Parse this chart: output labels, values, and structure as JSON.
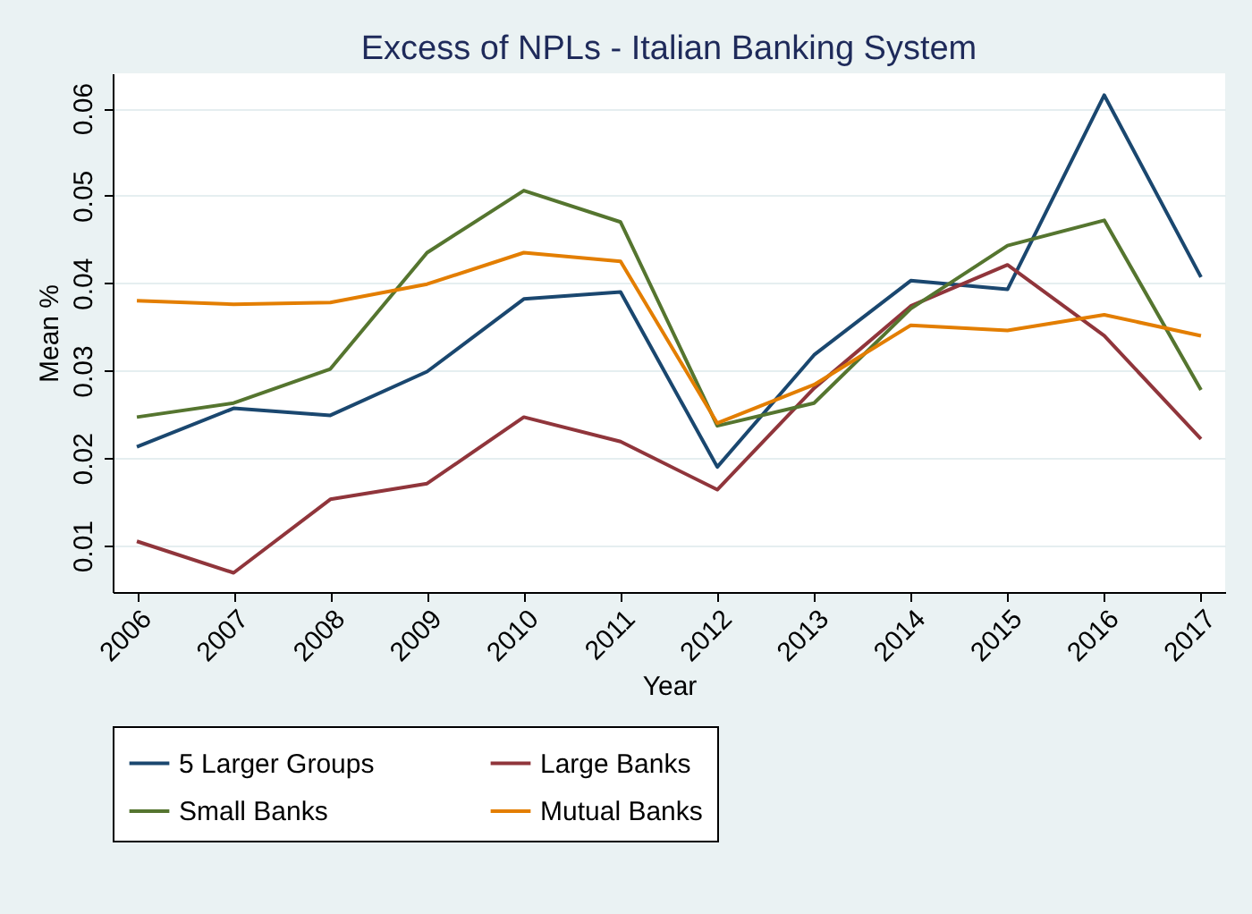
{
  "chart_data": {
    "type": "line",
    "title": "Excess of NPLs - Italian Banking System",
    "xlabel": "Year",
    "ylabel": "Mean %",
    "categories": [
      "2006",
      "2007",
      "2008",
      "2009",
      "2010",
      "2011",
      "2012",
      "2013",
      "2014",
      "2015",
      "2016",
      "2017"
    ],
    "series": [
      {
        "name": "5 Larger Groups",
        "color": "#1a476f",
        "values": [
          0.0213,
          0.0257,
          0.0249,
          0.0299,
          0.0382,
          0.039,
          0.019,
          0.0318,
          0.0403,
          0.0393,
          0.0615,
          0.0407
        ]
      },
      {
        "name": "Large Banks",
        "color": "#90353b",
        "values": [
          0.0105,
          0.0069,
          0.0153,
          0.0171,
          0.0247,
          0.0219,
          0.0164,
          0.028,
          0.0374,
          0.0421,
          0.034,
          0.0222
        ]
      },
      {
        "name": "Small Banks",
        "color": "#55752f",
        "values": [
          0.0247,
          0.0263,
          0.0302,
          0.0435,
          0.0506,
          0.047,
          0.0237,
          0.0263,
          0.0371,
          0.0443,
          0.0472,
          0.0278
        ]
      },
      {
        "name": "Mutual Banks",
        "color": "#e37e00",
        "values": [
          0.038,
          0.0376,
          0.0378,
          0.0399,
          0.0435,
          0.0425,
          0.024,
          0.0284,
          0.0352,
          0.0346,
          0.0364,
          0.034
        ]
      }
    ],
    "ylim": [
      0.0047,
      0.064
    ],
    "yticks": [
      0.01,
      0.02,
      0.03,
      0.04,
      0.05,
      0.06
    ],
    "grid": "y",
    "legend": "bottom",
    "line_style": "solid",
    "marker": "none"
  }
}
